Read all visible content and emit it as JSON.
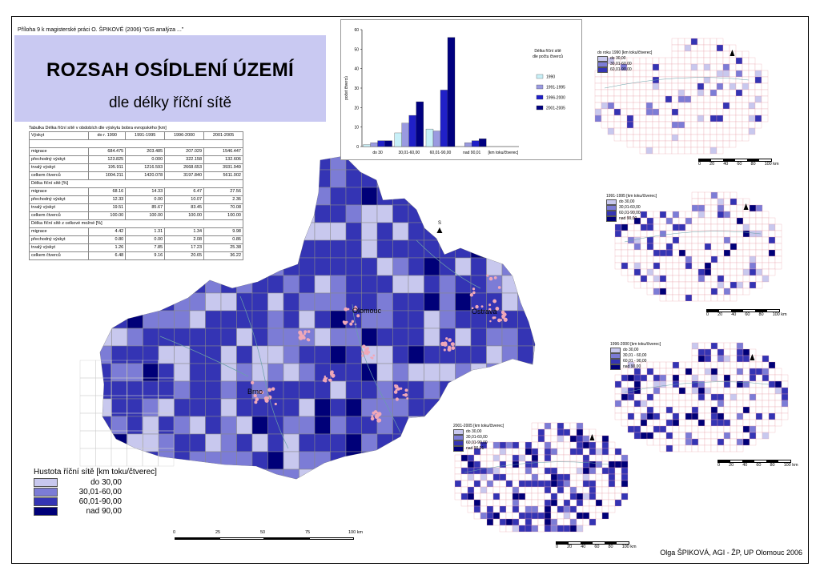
{
  "header": {
    "note": "Příloha 9 k magisterské práci O. ŠPIKOVÉ (2006) \"GIS analýza ...\"",
    "title": "ROZSAH OSÍDLENÍ ÚZEMÍ",
    "subtitle": "dle délky říční sítě"
  },
  "table": {
    "caption": "Tabulka Délka říční sítě v obdobích dle výskytu bobra evropského [km]",
    "columns": [
      "Výskyt",
      "do r. 1990",
      "1991-1995",
      "1996-2000",
      "2001-2005"
    ],
    "sections": [
      {
        "title": "",
        "rows": [
          [
            "migrace",
            "684.475",
            "203.485",
            "207.029",
            "1546.447"
          ],
          [
            "přechodný výskyt",
            "123.825",
            "0.000",
            "322.158",
            "132.606"
          ],
          [
            "trvalý výskyt",
            "195.911",
            "1216.593",
            "2668.653",
            "3931.949"
          ],
          [
            "celkem čtverců",
            "1004.211",
            "1420.078",
            "3197.840",
            "5611.002"
          ]
        ]
      },
      {
        "title": "Délka říční sítě [%]",
        "rows": [
          [
            "migrace",
            "68.16",
            "14.33",
            "6.47",
            "27.56"
          ],
          [
            "přechodný výskyt",
            "12.33",
            "0.00",
            "10.07",
            "2.36"
          ],
          [
            "trvalý výskyt",
            "19.51",
            "85.67",
            "83.45",
            "70.08"
          ],
          [
            "celkem čtverců",
            "100.00",
            "100.00",
            "100.00",
            "100.00"
          ]
        ]
      },
      {
        "title": "Délka říční sítě z celkové možné [%]",
        "rows": [
          [
            "migrace",
            "4.42",
            "1.31",
            "1.34",
            "9.98"
          ],
          [
            "přechodný výskyt",
            "0.80",
            "0.00",
            "2.08",
            "0.86"
          ],
          [
            "trvalý výskyt",
            "1.26",
            "7.85",
            "17.23",
            "25.38"
          ],
          [
            "celkem čtverců",
            "6.48",
            "9.16",
            "20.65",
            "36.22"
          ]
        ]
      }
    ]
  },
  "chart_data": {
    "type": "bar",
    "title": "Délka říční sítě dle počtu čtverců",
    "ylabel": "počet čtverců",
    "categories": [
      "do 30",
      "30,01-60,00",
      "60,01-90,00",
      "nad 90,01"
    ],
    "xaxis_extra_label": "[km toku/čtverec]",
    "ylim": [
      0,
      60
    ],
    "yticks": [
      0,
      10,
      20,
      30,
      40,
      50,
      60
    ],
    "series": [
      {
        "name": "1990",
        "color": "#c8f0f8",
        "values": [
          1,
          7,
          9,
          0
        ]
      },
      {
        "name": "1991-1995",
        "color": "#9a9ae0",
        "values": [
          2,
          12,
          8,
          2
        ]
      },
      {
        "name": "1996-2000",
        "color": "#2020c8",
        "values": [
          3,
          16,
          29,
          3
        ]
      },
      {
        "name": "2001-2005",
        "color": "#000080",
        "values": [
          3,
          23,
          56,
          4
        ]
      }
    ]
  },
  "map": {
    "cities": {
      "brno": "Brno",
      "olomouc": "Olomouc",
      "ostrava": "Ostrava"
    },
    "north": "S",
    "colors": {
      "c1": "#c8c8ee",
      "c2": "#7c7cd6",
      "c3": "#3434b4",
      "c4": "#000078",
      "urban": "#f0a8b8",
      "river": "#6aa0a8"
    }
  },
  "legend": {
    "title": "Hustota říční sítě [km toku/čtverec]",
    "items": [
      "do 30,00",
      "30,01-60,00",
      "60,01-90,00",
      "nad 90,00"
    ]
  },
  "scalebar": {
    "ticks": [
      "0",
      "25",
      "50",
      "75",
      "100 km"
    ]
  },
  "minimaps": [
    {
      "title": "do roku 1990 [km toku/čtverec]",
      "items": [
        "do 30,00",
        "30,01-60,00",
        "60,01-90,00"
      ],
      "scale": [
        "0",
        "20",
        "40",
        "60",
        "80",
        "100 km"
      ]
    },
    {
      "title": "1991-1995 [km toku/čtverec]",
      "items": [
        "do 30,00",
        "30,01-60,00",
        "60,01-90,00",
        "nad 90,00"
      ],
      "scale": [
        "0",
        "20",
        "40",
        "60",
        "80",
        "100 km"
      ]
    },
    {
      "title": "1996-2000 [km toku/čtverec]",
      "items": [
        "do 30,00",
        "30,01 - 60,00",
        "60,01 - 90,00",
        "nad 90,00"
      ],
      "scale": [
        "0",
        "20",
        "40",
        "60",
        "80",
        "100 km"
      ]
    },
    {
      "title": "2001-2005 [km toku/čtverec]",
      "items": [
        "do 30,00",
        "30,01-60,00",
        "60,01-90,00",
        "nad 90,01"
      ],
      "scale": [
        "0",
        "20",
        "40",
        "60",
        "80",
        "100 km"
      ]
    }
  ],
  "footer": {
    "author": "Olga ŠPIKOVÁ, AGI - ŽP, UP Olomouc 2006"
  }
}
